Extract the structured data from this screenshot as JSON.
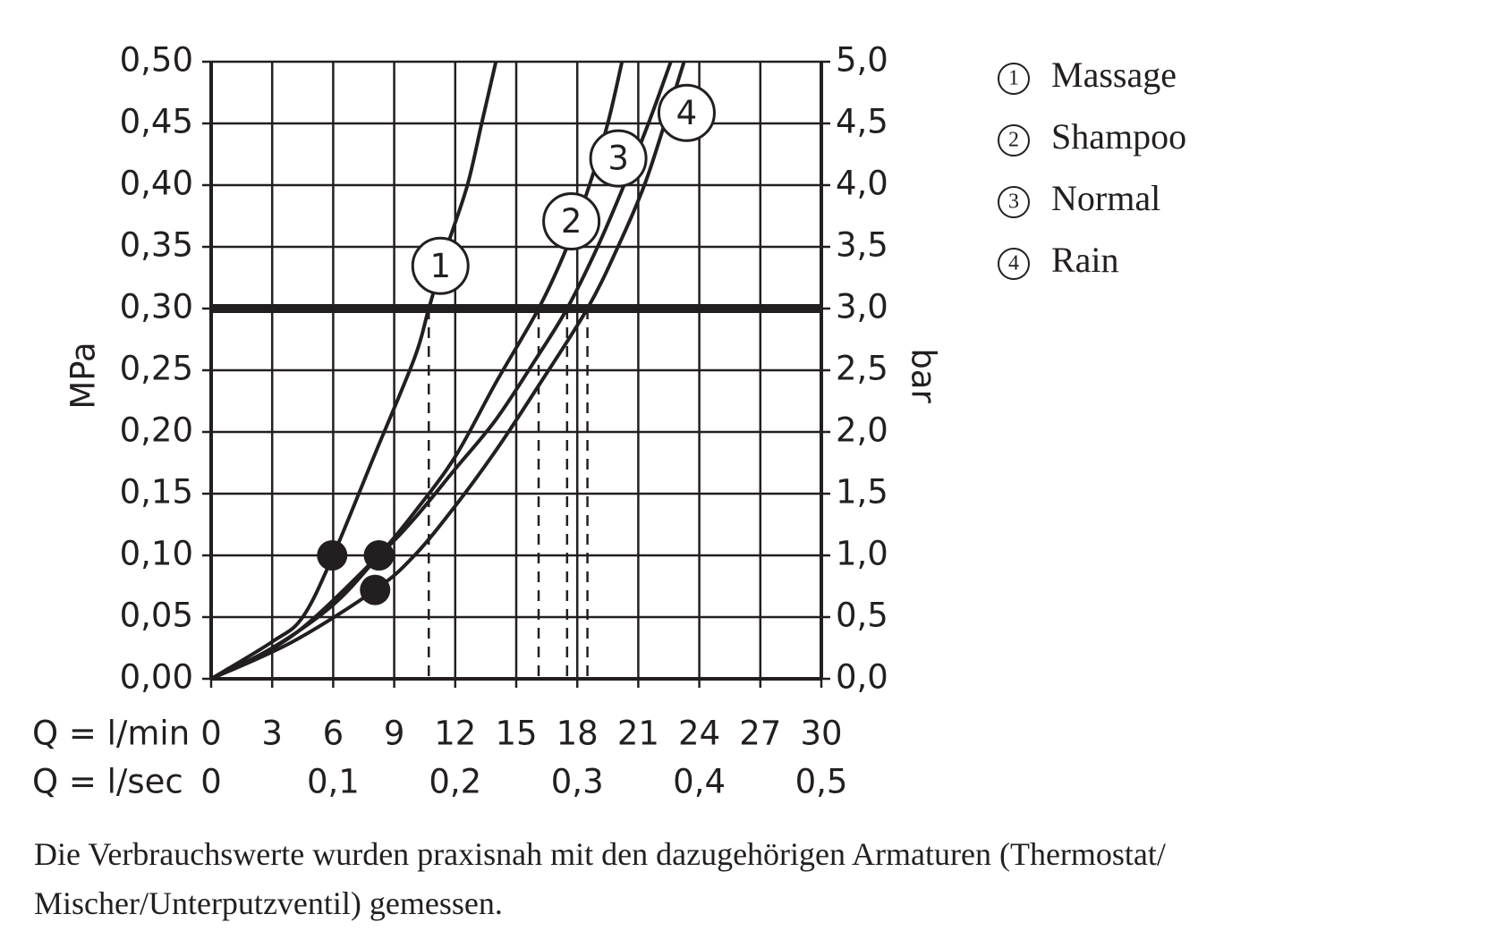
{
  "chart_data": {
    "type": "line",
    "ylabel": "MPa",
    "y2label": "bar",
    "xlabel": "Q = l/min",
    "x2label": "Q = l/sec",
    "xlim": [
      0,
      30
    ],
    "xticks": [
      0,
      3,
      6,
      9,
      12,
      15,
      18,
      21,
      24,
      27,
      30
    ],
    "x2lim": [
      0,
      0.5
    ],
    "x2ticks": [
      0,
      {
        "value": 0.1,
        "label": "0,1"
      },
      {
        "value": 0.2,
        "label": "0,2"
      },
      {
        "value": 0.3,
        "label": "0,3"
      },
      {
        "value": 0.4,
        "label": "0,4"
      },
      {
        "value": 0.5,
        "label": "0,5"
      }
    ],
    "ylim": [
      0,
      0.5
    ],
    "yticks": [
      {
        "value": 0,
        "label": "0,00"
      },
      {
        "value": 0.05,
        "label": "0,05"
      },
      {
        "value": 0.1,
        "label": "0,10"
      },
      {
        "value": 0.15,
        "label": "0,15"
      },
      {
        "value": 0.2,
        "label": "0,20"
      },
      {
        "value": 0.25,
        "label": "0,25"
      },
      {
        "value": 0.3,
        "label": "0,30"
      },
      {
        "value": 0.35,
        "label": "0,35"
      },
      {
        "value": 0.4,
        "label": "0,40"
      },
      {
        "value": 0.45,
        "label": "0,45"
      },
      {
        "value": 0.5,
        "label": "0,50"
      }
    ],
    "y2lim": [
      0,
      5
    ],
    "y2ticks": [
      {
        "value": 0,
        "label": "0,0"
      },
      {
        "value": 0.5,
        "label": "0,5"
      },
      {
        "value": 1,
        "label": "1,0"
      },
      {
        "value": 1.5,
        "label": "1,5"
      },
      {
        "value": 2,
        "label": "2,0"
      },
      {
        "value": 2.5,
        "label": "2,5"
      },
      {
        "value": 3,
        "label": "3,0"
      },
      {
        "value": 3.5,
        "label": "3,5"
      },
      {
        "value": 4,
        "label": "4,0"
      },
      {
        "value": 4.5,
        "label": "4,5"
      },
      {
        "value": 5,
        "label": "5,0"
      }
    ],
    "grid": true,
    "reference_y": 0.3,
    "series": [
      {
        "name": "Massage",
        "symbol": "1",
        "color": "#231f20",
        "x": [
          0,
          3,
          4.5,
          6,
          8,
          10,
          10.7,
          11.6,
          12.6,
          13.3,
          14
        ],
        "values": [
          0,
          0.03,
          0.05,
          0.1,
          0.18,
          0.26,
          0.3,
          0.35,
          0.4,
          0.45,
          0.5
        ]
      },
      {
        "name": "Shampoo",
        "symbol": "2",
        "color": "#231f20",
        "x": [
          0,
          3,
          6,
          8.25,
          10,
          12,
          14,
          16.1,
          17.5,
          18.6,
          19.5,
          20.2
        ],
        "values": [
          0,
          0.025,
          0.06,
          0.1,
          0.135,
          0.18,
          0.24,
          0.3,
          0.35,
          0.4,
          0.45,
          0.5
        ]
      },
      {
        "name": "Normal",
        "symbol": "3",
        "color": "#231f20",
        "x": [
          0,
          4,
          8.25,
          10,
          12,
          14,
          16,
          17.5,
          19,
          20.3,
          21.5,
          22.6
        ],
        "values": [
          0,
          0.035,
          0.1,
          0.13,
          0.17,
          0.21,
          0.26,
          0.3,
          0.35,
          0.4,
          0.45,
          0.5
        ]
      },
      {
        "name": "Rain",
        "symbol": "4",
        "color": "#231f20",
        "x": [
          0,
          4,
          8.06,
          10,
          12,
          14,
          16,
          18.5,
          20,
          21.3,
          22.3,
          23.25
        ],
        "values": [
          0,
          0.03,
          0.072,
          0.1,
          0.14,
          0.185,
          0.235,
          0.3,
          0.35,
          0.4,
          0.45,
          0.5
        ]
      }
    ],
    "markers": {
      "x": [
        5.95,
        8.25,
        8.06
      ],
      "y": [
        0.1,
        0.1,
        0.072
      ]
    },
    "caption": "Die Verbrauchswerte wurden praxisnah mit den dazugehörigen Armaturen (Thermostat/ Mischer/Unterputzventil) gemessen."
  }
}
